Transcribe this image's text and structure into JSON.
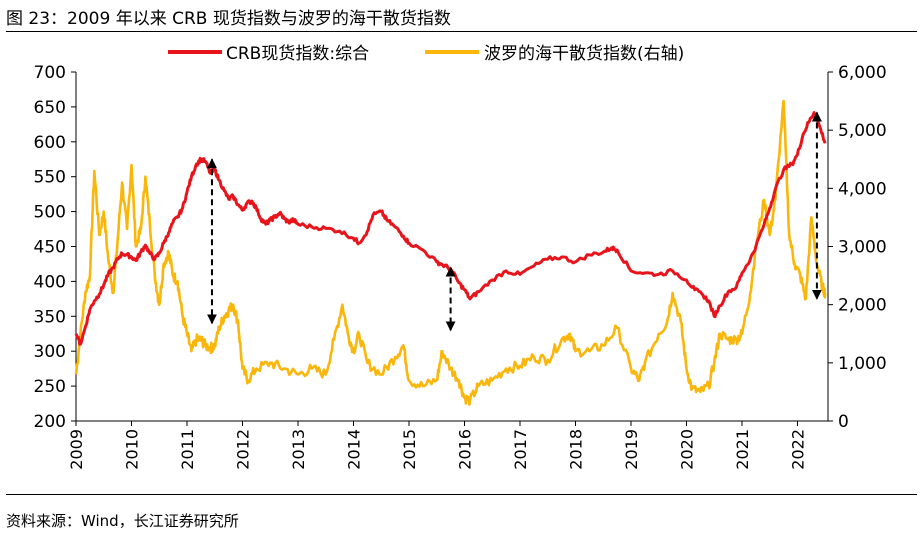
{
  "figure": {
    "title": "图 23：2009 年以来 CRB 现货指数与波罗的海干散货指数",
    "source": "资料来源：Wind，长江证券研究所"
  },
  "chart_data": {
    "type": "line",
    "title": "2009 年以来 CRB 现货指数与波罗的海干散货指数",
    "xlabel": "",
    "ylabel": "",
    "x_ticks": [
      "2009",
      "2010",
      "2011",
      "2012",
      "2013",
      "2014",
      "2015",
      "2016",
      "2017",
      "2018",
      "2019",
      "2020",
      "2021",
      "2022"
    ],
    "y_left": {
      "lim": [
        200,
        700
      ],
      "ticks": [
        "200",
        "250",
        "300",
        "350",
        "400",
        "450",
        "500",
        "550",
        "600",
        "650",
        "700"
      ]
    },
    "y_right": {
      "lim": [
        0,
        6000
      ],
      "ticks": [
        "0",
        "1,000",
        "2,000",
        "3,000",
        "4,000",
        "5,000",
        "6,000"
      ]
    },
    "legend_position": "top",
    "series": [
      {
        "name": "CRB现货指数:综合",
        "axis": "left",
        "color": "#e8141b",
        "x": [
          2009.0,
          2009.08,
          2009.17,
          2009.25,
          2009.33,
          2009.42,
          2009.5,
          2009.58,
          2009.67,
          2009.75,
          2009.83,
          2009.92,
          2010.0,
          2010.08,
          2010.17,
          2010.25,
          2010.33,
          2010.42,
          2010.5,
          2010.58,
          2010.67,
          2010.75,
          2010.83,
          2010.92,
          2011.0,
          2011.08,
          2011.17,
          2011.25,
          2011.33,
          2011.42,
          2011.5,
          2011.58,
          2011.67,
          2011.75,
          2011.83,
          2011.92,
          2012.0,
          2012.08,
          2012.17,
          2012.25,
          2012.33,
          2012.42,
          2012.5,
          2012.58,
          2012.67,
          2012.75,
          2012.83,
          2012.92,
          2013.0,
          2013.25,
          2013.5,
          2013.75,
          2014.0,
          2014.1,
          2014.25,
          2014.35,
          2014.5,
          2014.6,
          2014.75,
          2014.9,
          2015.0,
          2015.25,
          2015.5,
          2015.6,
          2015.75,
          2015.9,
          2016.0,
          2016.1,
          2016.25,
          2016.5,
          2016.75,
          2017.0,
          2017.25,
          2017.5,
          2017.75,
          2018.0,
          2018.25,
          2018.5,
          2018.65,
          2018.75,
          2019.0,
          2019.25,
          2019.5,
          2019.75,
          2020.0,
          2020.15,
          2020.3,
          2020.4,
          2020.5,
          2020.6,
          2020.75,
          2020.9,
          2021.0,
          2021.15,
          2021.25,
          2021.4,
          2021.5,
          2021.6,
          2021.75,
          2021.9,
          2022.0,
          2022.1,
          2022.2,
          2022.3,
          2022.4,
          2022.5
        ],
        "values": [
          325,
          310,
          335,
          360,
          372,
          382,
          395,
          410,
          420,
          432,
          440,
          438,
          435,
          430,
          442,
          452,
          440,
          432,
          440,
          455,
          470,
          485,
          492,
          505,
          528,
          550,
          568,
          575,
          572,
          555,
          560,
          545,
          530,
          518,
          522,
          510,
          502,
          512,
          515,
          505,
          490,
          482,
          488,
          492,
          498,
          490,
          485,
          488,
          482,
          478,
          476,
          472,
          462,
          455,
          472,
          495,
          500,
          488,
          478,
          465,
          455,
          445,
          428,
          424,
          418,
          398,
          388,
          375,
          385,
          402,
          415,
          410,
          422,
          432,
          435,
          428,
          438,
          442,
          448,
          445,
          415,
          412,
          410,
          415,
          402,
          388,
          380,
          372,
          350,
          365,
          385,
          392,
          412,
          432,
          450,
          482,
          505,
          532,
          560,
          568,
          582,
          610,
          628,
          642,
          622,
          598
        ]
      },
      {
        "name": "波罗的海干散货指数(右轴)",
        "axis": "right",
        "color": "#fab609",
        "x": [
          2009.0,
          2009.08,
          2009.17,
          2009.25,
          2009.33,
          2009.42,
          2009.5,
          2009.58,
          2009.67,
          2009.75,
          2009.83,
          2009.92,
          2010.0,
          2010.08,
          2010.17,
          2010.25,
          2010.33,
          2010.42,
          2010.5,
          2010.58,
          2010.67,
          2010.75,
          2010.83,
          2010.92,
          2011.0,
          2011.08,
          2011.17,
          2011.25,
          2011.33,
          2011.42,
          2011.5,
          2011.58,
          2011.67,
          2011.75,
          2011.83,
          2011.92,
          2012.0,
          2012.1,
          2012.25,
          2012.5,
          2012.75,
          2013.0,
          2013.25,
          2013.5,
          2013.65,
          2013.8,
          2013.9,
          2014.0,
          2014.1,
          2014.25,
          2014.5,
          2014.75,
          2014.9,
          2015.0,
          2015.25,
          2015.5,
          2015.6,
          2015.75,
          2015.9,
          2016.0,
          2016.1,
          2016.25,
          2016.5,
          2016.75,
          2017.0,
          2017.25,
          2017.5,
          2017.75,
          2017.9,
          2018.0,
          2018.25,
          2018.5,
          2018.75,
          2019.0,
          2019.15,
          2019.25,
          2019.5,
          2019.65,
          2019.75,
          2019.9,
          2020.0,
          2020.1,
          2020.25,
          2020.4,
          2020.5,
          2020.6,
          2020.75,
          2020.9,
          2021.0,
          2021.15,
          2021.25,
          2021.4,
          2021.5,
          2021.6,
          2021.75,
          2021.85,
          2021.95,
          2022.05,
          2022.15,
          2022.25,
          2022.35,
          2022.45,
          2022.5
        ],
        "values": [
          800,
          1500,
          2200,
          2500,
          4300,
          3200,
          3600,
          2800,
          2200,
          3100,
          4100,
          3300,
          4400,
          3000,
          3300,
          4200,
          3400,
          2500,
          2000,
          2700,
          2900,
          2500,
          2400,
          1800,
          1500,
          1200,
          1400,
          1400,
          1300,
          1250,
          1300,
          1600,
          1800,
          1900,
          2000,
          1700,
          900,
          700,
          900,
          1000,
          900,
          800,
          900,
          800,
          1400,
          2000,
          1500,
          1200,
          1500,
          1000,
          800,
          1100,
          1300,
          700,
          600,
          700,
          1200,
          900,
          700,
          400,
          350,
          600,
          700,
          900,
          950,
          1100,
          1050,
          1400,
          1500,
          1200,
          1200,
          1300,
          1600,
          900,
          700,
          1000,
          1500,
          1700,
          2200,
          1700,
          900,
          550,
          500,
          600,
          1000,
          1500,
          1400,
          1400,
          1500,
          2200,
          3000,
          3800,
          3200,
          3800,
          5500,
          3200,
          2700,
          2500,
          2100,
          3500,
          2700,
          2300,
          2200
        ]
      }
    ],
    "annotations": [
      {
        "type": "double-arrow",
        "x": 2011.45,
        "from_left": 575,
        "to_left": 340
      },
      {
        "type": "double-arrow",
        "x": 2015.75,
        "from_left": 420,
        "to_left": 330
      },
      {
        "type": "double-arrow",
        "x": 2022.35,
        "from_left": 642,
        "to_left": 375
      }
    ]
  }
}
